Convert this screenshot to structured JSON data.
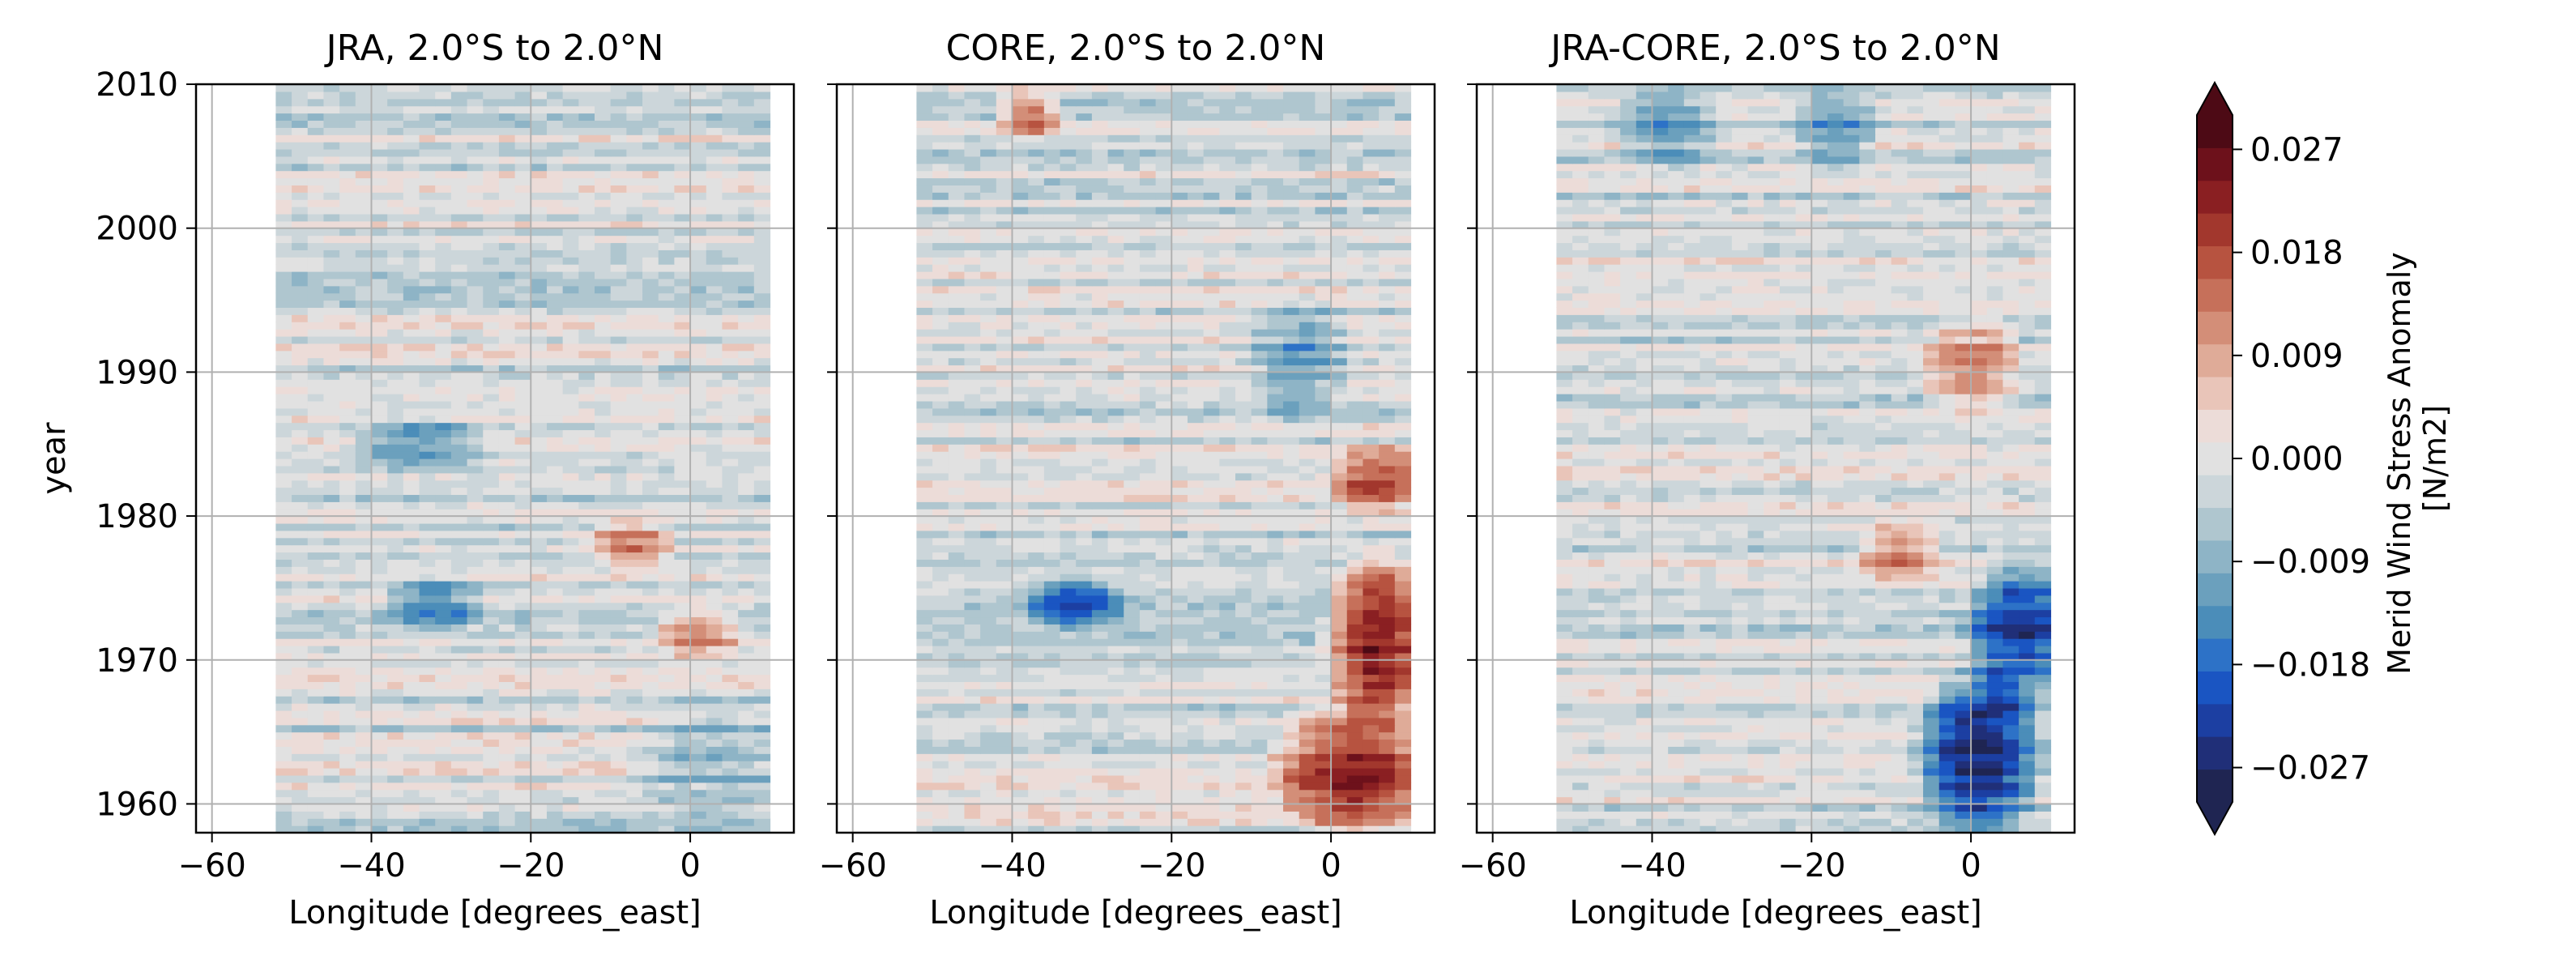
{
  "chart_data": [
    {
      "type": "heatmap",
      "title": "JRA, 2.0°S to 2.0°N",
      "xlabel": "Longitude [degrees_east]",
      "ylabel": "year",
      "xlim": [
        -62,
        13
      ],
      "ylim": [
        1958,
        2010
      ],
      "xticks": [
        -60,
        -40,
        -20,
        0
      ],
      "xtick_labels": [
        "−60",
        "−40",
        "−20",
        "0"
      ],
      "yticks": [
        1960,
        1970,
        1980,
        1990,
        2000,
        2010
      ],
      "ytick_labels": [
        "1960",
        "1970",
        "1980",
        "1990",
        "2000",
        "2010"
      ],
      "grid": true,
      "data_extent": {
        "lon": [
          -52,
          10
        ],
        "year": [
          1958,
          2010
        ]
      },
      "features": [
        {
          "lon": [
            -40,
            -28
          ],
          "year": [
            1984,
            1986
          ],
          "value": -0.011
        },
        {
          "lon": [
            -36,
            -28
          ],
          "year": [
            1973,
            1975
          ],
          "value": -0.012
        },
        {
          "lon": [
            -10,
            -4
          ],
          "year": [
            1977,
            1979
          ],
          "value": 0.013
        },
        {
          "lon": [
            -2,
            4
          ],
          "year": [
            1971,
            1973
          ],
          "value": 0.013
        },
        {
          "lon": [
            -4,
            10
          ],
          "year": [
            1960,
            1966
          ],
          "value": -0.007
        }
      ]
    },
    {
      "type": "heatmap",
      "title": "CORE, 2.0°S to 2.0°N",
      "xlabel": "Longitude [degrees_east]",
      "ylabel": "",
      "xlim": [
        -62,
        13
      ],
      "ylim": [
        1958,
        2010
      ],
      "xticks": [
        -60,
        -40,
        -20,
        0
      ],
      "xtick_labels": [
        "−60",
        "−40",
        "−20",
        "0"
      ],
      "yticks": [
        1960,
        1970,
        1980,
        1990,
        2000,
        2010
      ],
      "ytick_labels": [],
      "grid": true,
      "data_extent": {
        "lon": [
          -52,
          10
        ],
        "year": [
          1958,
          2010
        ]
      },
      "features": [
        {
          "lon": [
            -40,
            -36
          ],
          "year": [
            2007,
            2009
          ],
          "value": 0.015
        },
        {
          "lon": [
            -36,
            -28
          ],
          "year": [
            1973,
            1975
          ],
          "value": -0.015
        },
        {
          "lon": [
            2,
            10
          ],
          "year": [
            1967,
            1976
          ],
          "value": 0.024
        },
        {
          "lon": [
            -4,
            10
          ],
          "year": [
            1959,
            1966
          ],
          "value": 0.02
        },
        {
          "lon": [
            2,
            10
          ],
          "year": [
            1981,
            1984
          ],
          "value": 0.016
        },
        {
          "lon": [
            -8,
            0
          ],
          "year": [
            1988,
            1994
          ],
          "value": -0.01
        }
      ]
    },
    {
      "type": "heatmap",
      "title": "JRA-CORE, 2.0°S to 2.0°N",
      "xlabel": "Longitude [degrees_east]",
      "ylabel": "",
      "xlim": [
        -62,
        13
      ],
      "ylim": [
        1958,
        2010
      ],
      "xticks": [
        -60,
        -40,
        -20,
        0
      ],
      "xtick_labels": [
        "−60",
        "−40",
        "−20",
        "0"
      ],
      "yticks": [
        1960,
        1970,
        1980,
        1990,
        2000,
        2010
      ],
      "ytick_labels": [],
      "grid": true,
      "data_extent": {
        "lon": [
          -52,
          10
        ],
        "year": [
          1958,
          2010
        ]
      },
      "features": [
        {
          "lon": [
            -42,
            -34
          ],
          "year": [
            2005,
            2009
          ],
          "value": -0.01
        },
        {
          "lon": [
            -20,
            -14
          ],
          "year": [
            2005,
            2009
          ],
          "value": -0.01
        },
        {
          "lon": [
            -4,
            6
          ],
          "year": [
            1959,
            1968
          ],
          "value": -0.024
        },
        {
          "lon": [
            2,
            10
          ],
          "year": [
            1968,
            1976
          ],
          "value": -0.018
        },
        {
          "lon": [
            -12,
            -6
          ],
          "year": [
            1976,
            1979
          ],
          "value": 0.012
        },
        {
          "lon": [
            -4,
            4
          ],
          "year": [
            1988,
            1993
          ],
          "value": 0.012
        }
      ]
    }
  ],
  "colorbar": {
    "label_line1": "Merid Wind Stress Anomaly",
    "label_line2": "[N/m2]",
    "min": -0.03,
    "max": 0.03,
    "step": 0.003,
    "extend": "both",
    "ticks": [
      -0.027,
      -0.018,
      -0.009,
      0.0,
      0.009,
      0.018,
      0.027
    ],
    "tick_labels": [
      "−0.027",
      "−0.018",
      "−0.009",
      "0.000",
      "0.009",
      "0.018",
      "0.027"
    ],
    "colors": [
      "#1f2552",
      "#202f78",
      "#1c3fa2",
      "#1a55c2",
      "#2d72c7",
      "#4b8db9",
      "#6ba0bd",
      "#8eb4c6",
      "#afc6cf",
      "#ccd6da",
      "#e1e1e1",
      "#ecdcd8",
      "#e9c5b9",
      "#dfab98",
      "#d38e78",
      "#c6705a",
      "#b75340",
      "#a2372d",
      "#8a1f22",
      "#6d111b",
      "#4d0a15"
    ]
  }
}
